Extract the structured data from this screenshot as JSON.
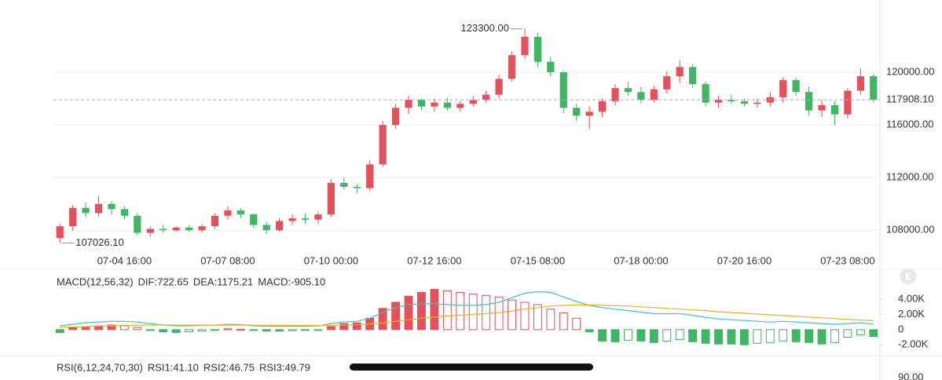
{
  "chart_data": [
    {
      "type": "candlestick",
      "categories": [
        null,
        null,
        null,
        null,
        null,
        "07-04 16:00",
        null,
        null,
        null,
        null,
        null,
        null,
        null,
        "07-07 08:00",
        null,
        null,
        null,
        null,
        null,
        null,
        null,
        "07-10 00:00",
        null,
        null,
        null,
        null,
        null,
        null,
        null,
        "07-12 16:00",
        null,
        null,
        null,
        null,
        null,
        null,
        null,
        "07-15 08:00",
        null,
        null,
        null,
        null,
        null,
        null,
        null,
        "07-18 00:00",
        null,
        null,
        null,
        null,
        null,
        null,
        null,
        "07-20 16:00",
        null,
        null,
        null,
        null,
        null,
        null,
        null,
        "07-23 08:00",
        null,
        null
      ],
      "ohlc": [
        [
          107400,
          108500,
          107026.1,
          108300
        ],
        [
          108300,
          109900,
          108000,
          109700
        ],
        [
          109700,
          110100,
          109000,
          109300
        ],
        [
          109300,
          110600,
          109000,
          110000
        ],
        [
          110000,
          110200,
          109200,
          109600
        ],
        [
          109600,
          109800,
          108800,
          109100
        ],
        [
          109100,
          109300,
          107600,
          107800
        ],
        [
          107800,
          108300,
          107500,
          108100
        ],
        [
          108100,
          108400,
          107800,
          108000
        ],
        [
          108000,
          108300,
          107900,
          108200
        ],
        [
          108200,
          108400,
          107900,
          108000
        ],
        [
          108000,
          108500,
          107800,
          108300
        ],
        [
          108300,
          109300,
          108100,
          109100
        ],
        [
          109100,
          109800,
          108800,
          109500
        ],
        [
          109500,
          109700,
          108900,
          109200
        ],
        [
          109200,
          109300,
          108200,
          108400
        ],
        [
          108400,
          108600,
          107700,
          108000
        ],
        [
          108000,
          108900,
          107900,
          108700
        ],
        [
          108700,
          109200,
          108400,
          108900
        ],
        [
          108900,
          109300,
          108500,
          108800
        ],
        [
          108800,
          109400,
          108500,
          109200
        ],
        [
          109200,
          111900,
          109000,
          111600
        ],
        [
          111600,
          112000,
          111100,
          111300
        ],
        [
          111300,
          111500,
          110800,
          111200
        ],
        [
          111200,
          113300,
          111000,
          113000
        ],
        [
          113000,
          116300,
          112800,
          116000
        ],
        [
          116000,
          117600,
          115700,
          117300
        ],
        [
          117300,
          118200,
          116800,
          117900
        ],
        [
          117900,
          118000,
          117100,
          117400
        ],
        [
          117400,
          118000,
          117000,
          117700
        ],
        [
          117700,
          118100,
          117100,
          117300
        ],
        [
          117300,
          117800,
          117000,
          117600
        ],
        [
          117600,
          118200,
          117400,
          117900
        ],
        [
          117900,
          118600,
          117700,
          118300
        ],
        [
          118300,
          119800,
          118000,
          119500
        ],
        [
          119500,
          121600,
          119300,
          121300
        ],
        [
          121300,
          123300,
          121000,
          122700
        ],
        [
          122700,
          123000,
          120400,
          120800
        ],
        [
          120800,
          121200,
          119700,
          120000
        ],
        [
          120000,
          120100,
          116900,
          117300
        ],
        [
          117300,
          117600,
          116300,
          116700
        ],
        [
          116700,
          117400,
          115700,
          117000
        ],
        [
          117000,
          118000,
          116600,
          117800
        ],
        [
          117800,
          119100,
          117500,
          118800
        ],
        [
          118800,
          119300,
          118200,
          118500
        ],
        [
          118500,
          118900,
          117600,
          117900
        ],
        [
          117900,
          119000,
          117700,
          118700
        ],
        [
          118700,
          120100,
          118400,
          119700
        ],
        [
          119700,
          120900,
          119200,
          120400
        ],
        [
          120400,
          120600,
          118800,
          119100
        ],
        [
          119100,
          119300,
          117400,
          117700
        ],
        [
          117700,
          118200,
          117300,
          117900
        ],
        [
          117900,
          118300,
          117600,
          117800
        ],
        [
          117800,
          118000,
          117400,
          117600
        ],
        [
          117600,
          118000,
          117300,
          117700
        ],
        [
          117700,
          118500,
          117400,
          118100
        ],
        [
          118100,
          119600,
          117700,
          119400
        ],
        [
          119400,
          119600,
          118200,
          118500
        ],
        [
          118500,
          118900,
          116700,
          117100
        ],
        [
          117100,
          117900,
          116600,
          117500
        ],
        [
          117500,
          117800,
          116000,
          116800
        ],
        [
          116800,
          118800,
          116500,
          118600
        ],
        [
          118600,
          120300,
          118300,
          119700
        ],
        [
          119700,
          119900,
          117700,
          117908.1
        ]
      ],
      "up_color": "#e5505a",
      "down_color": "#3eb663",
      "ylim": [
        106700,
        124300
      ],
      "yticks": [
        {
          "value": 108000,
          "label": "108000.00"
        },
        {
          "value": 112000,
          "label": "112000.00"
        },
        {
          "value": 116000,
          "label": "116000.00"
        },
        {
          "value": 120000,
          "label": "120000.00"
        }
      ],
      "grid": true,
      "max_label": {
        "value": 123300,
        "label": "123300.00"
      },
      "min_label": {
        "value": 107026.1,
        "label": "107026.10"
      },
      "last_price": {
        "value": 117908.1,
        "label": "117908.10"
      }
    },
    {
      "type": "macd",
      "label": "MACD(12,56,32)",
      "series": [
        {
          "label": "DIF:722.65",
          "color": "#3fc4c8",
          "values": [
            500,
            700,
            900,
            1000,
            1100,
            1100,
            1000,
            800,
            600,
            500,
            500,
            550,
            600,
            700,
            650,
            500,
            450,
            450,
            450,
            450,
            480,
            800,
            1000,
            1100,
            1500,
            2300,
            2900,
            3300,
            3400,
            3400,
            3300,
            3200,
            3200,
            3300,
            3600,
            4200,
            4800,
            5000,
            4900,
            4300,
            3700,
            3200,
            2900,
            2700,
            2500,
            2300,
            2100,
            2100,
            2100,
            1900,
            1600,
            1400,
            1300,
            1200,
            1100,
            1000,
            1100,
            1000,
            900,
            800,
            700,
            800,
            900,
            722.65
          ]
        },
        {
          "label": "DEA:1175.21",
          "color": "#e8b422",
          "values": [
            300,
            350,
            400,
            450,
            500,
            550,
            580,
            600,
            600,
            600,
            590,
            590,
            590,
            590,
            590,
            580,
            570,
            560,
            550,
            540,
            530,
            560,
            600,
            650,
            750,
            900,
            1100,
            1300,
            1500,
            1650,
            1800,
            1900,
            2000,
            2100,
            2250,
            2450,
            2700,
            2900,
            3100,
            3200,
            3250,
            3250,
            3200,
            3150,
            3100,
            3000,
            2900,
            2800,
            2700,
            2600,
            2500,
            2350,
            2250,
            2150,
            2050,
            1950,
            1850,
            1750,
            1650,
            1550,
            1450,
            1350,
            1260,
            1175.21
          ]
        },
        {
          "label": "MACD:-905.10",
          "color": "#d04aa6",
          "up_color": "#e5505a",
          "down_color": "#3eb663",
          "values": [
            -400,
            300,
            400,
            500,
            600,
            500,
            300,
            -100,
            -300,
            -400,
            -300,
            -200,
            -100,
            100,
            50,
            -100,
            -200,
            -200,
            -150,
            -100,
            -100,
            400,
            800,
            900,
            1500,
            2800,
            3600,
            4400,
            4900,
            5300,
            5100,
            4900,
            4700,
            4500,
            4300,
            3900,
            3600,
            3300,
            2700,
            2200,
            1500,
            -300,
            -1500,
            -1600,
            -1400,
            -1500,
            -1700,
            -1500,
            -1300,
            -1600,
            -1800,
            -1900,
            -1900,
            -2000,
            -1800,
            -1700,
            -1500,
            -1600,
            -1700,
            -1900,
            -1700,
            -1000,
            -700,
            -905.1
          ]
        }
      ],
      "ylim": [
        -2600,
        6700
      ],
      "yticks": [
        {
          "value": 4000,
          "label": "4.00K"
        },
        {
          "value": 2000,
          "label": "2.00K"
        },
        0,
        {
          "value": -2000,
          "label": "-2.00K"
        }
      ]
    },
    {
      "type": "rsi",
      "label": "RSI(6,12,24,70,30)",
      "series": [
        {
          "label": "RSI1:41.10",
          "color": "#3fc4c8"
        },
        {
          "label": "RSI2:46.75",
          "color": "#e8b422"
        },
        {
          "label": "RSI3:49.79",
          "color": "#d04aa6"
        }
      ],
      "yticks": [
        {
          "value": 90,
          "label": "90.00"
        }
      ]
    }
  ]
}
